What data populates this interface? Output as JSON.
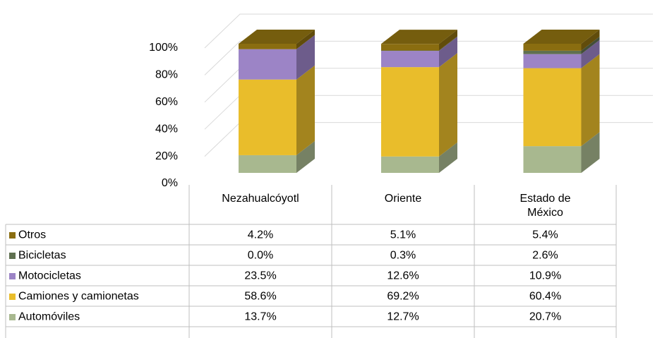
{
  "chart_data": {
    "type": "bar3d_stacked",
    "categories": [
      "Nezahualcóyotl",
      "Oriente",
      "Estado de México"
    ],
    "series": [
      {
        "name": "Otros",
        "color": "#8a6d10",
        "values": [
          4.2,
          5.1,
          5.4
        ],
        "value_labels": [
          "4.2%",
          "5.1%",
          "5.4%"
        ]
      },
      {
        "name": "Bicicletas",
        "color": "#5f7050",
        "values": [
          0.0,
          0.3,
          2.6
        ],
        "value_labels": [
          "0.0%",
          "0.3%",
          "2.6%"
        ]
      },
      {
        "name": "Motocicletas",
        "color": "#9c84c6",
        "values": [
          23.5,
          12.6,
          10.9
        ],
        "value_labels": [
          "23.5%",
          "12.6%",
          "10.9%"
        ]
      },
      {
        "name": "Camiones y camionetas",
        "color": "#e9bd2b",
        "values": [
          58.6,
          69.2,
          60.4
        ],
        "value_labels": [
          "58.6%",
          "69.2%",
          "60.4%"
        ]
      },
      {
        "name": "Automóviles",
        "color": "#a8b88f",
        "values": [
          13.7,
          12.7,
          20.7
        ],
        "value_labels": [
          "13.7%",
          "12.7%",
          "20.7%"
        ]
      }
    ],
    "ylim": [
      0,
      100
    ],
    "yticks": [
      {
        "value": 0,
        "label": "0%"
      },
      {
        "value": 20,
        "label": "20%"
      },
      {
        "value": 40,
        "label": "40%"
      },
      {
        "value": 60,
        "label": "60%"
      },
      {
        "value": 80,
        "label": "80%"
      },
      {
        "value": 100,
        "label": "100%"
      }
    ],
    "grid": true
  }
}
